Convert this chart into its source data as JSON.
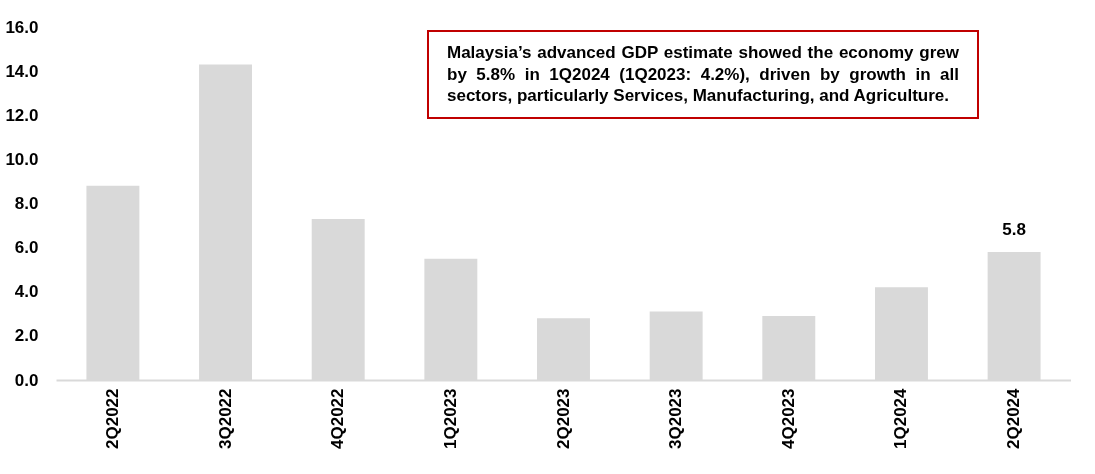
{
  "chart_data": {
    "type": "bar",
    "categories": [
      "2Q2022",
      "3Q2022",
      "4Q2022",
      "1Q2023",
      "2Q2023",
      "3Q2023",
      "4Q2023",
      "1Q2024",
      "2Q2024"
    ],
    "values": [
      8.8,
      14.3,
      7.3,
      5.5,
      2.8,
      3.1,
      2.9,
      4.2,
      5.8
    ],
    "value_labels": [
      null,
      null,
      null,
      null,
      null,
      null,
      null,
      null,
      "5.8"
    ],
    "color": "#d9d9d9",
    "ylim": [
      0,
      16
    ],
    "yticks": [
      {
        "value": 0,
        "label": "0.0"
      },
      {
        "value": 2,
        "label": "2.0"
      },
      {
        "value": 4,
        "label": "4.0"
      },
      {
        "value": 6,
        "label": "6.0"
      },
      {
        "value": 8,
        "label": "8.0"
      },
      {
        "value": 10,
        "label": "10.0"
      },
      {
        "value": 12,
        "label": "12.0"
      },
      {
        "value": 14,
        "label": "14.0"
      },
      {
        "value": 16,
        "label": "16.0"
      }
    ],
    "grid": false,
    "annotations": [
      "Malaysia’s advanced GDP estimate showed the economy grew by 5.8% in 1Q2024 (1Q2023: 4.2%), driven by growth in all sectors, particularly Services, Manufacturing, and Agriculture."
    ]
  }
}
